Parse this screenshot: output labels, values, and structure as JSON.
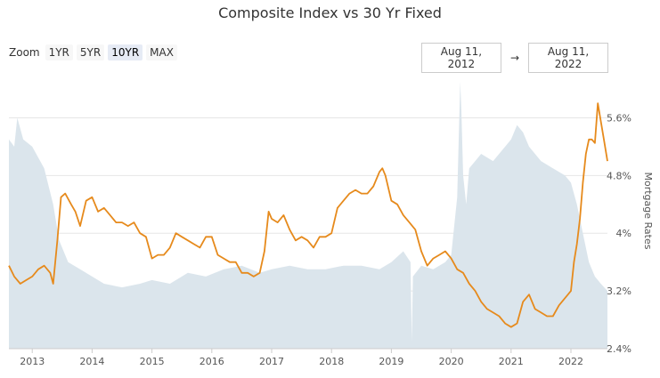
{
  "header": {
    "title": "Composite Index vs 30 Yr Fixed"
  },
  "zoom": {
    "label": "Zoom",
    "buttons": [
      {
        "label": "1YR",
        "active": false
      },
      {
        "label": "5YR",
        "active": false
      },
      {
        "label": "10YR",
        "active": true
      },
      {
        "label": "MAX",
        "active": false
      }
    ]
  },
  "range": {
    "from": "Aug 11, 2012",
    "separator": "→",
    "to": "Aug 11, 2022"
  },
  "colors": {
    "mortgage_line": "#e68a1c",
    "composite_area": "#dbe5ec",
    "grid": "#e6e6e6"
  },
  "chart_data": {
    "type": "area",
    "title": "Composite Index vs 30 Yr Fixed",
    "ylabel": "Mortgage Rates",
    "ylim": [
      2.4,
      6.0
    ],
    "y_ticks": [
      "2.4%",
      "3.2%",
      "4%",
      "4.8%",
      "5.6%"
    ],
    "y_tick_values": [
      2.4,
      3.2,
      4.0,
      4.8,
      5.6
    ],
    "xlim": [
      2012.61,
      2022.61
    ],
    "x_ticks": [
      "2013",
      "2014",
      "2015",
      "2016",
      "2017",
      "2018",
      "2019",
      "2020",
      "2021",
      "2022"
    ],
    "x_tick_values": [
      2013,
      2014,
      2015,
      2016,
      2017,
      2018,
      2019,
      2020,
      2021,
      2022
    ],
    "grid": true,
    "series": [
      {
        "name": "Mortgage Rates",
        "kind": "line",
        "x": [
          2012.61,
          2012.7,
          2012.8,
          2012.9,
          2013.0,
          2013.1,
          2013.2,
          2013.3,
          2013.35,
          2013.42,
          2013.48,
          2013.55,
          2013.65,
          2013.72,
          2013.8,
          2013.9,
          2014.0,
          2014.1,
          2014.2,
          2014.3,
          2014.4,
          2014.5,
          2014.6,
          2014.7,
          2014.8,
          2014.9,
          2015.0,
          2015.1,
          2015.2,
          2015.3,
          2015.4,
          2015.5,
          2015.6,
          2015.7,
          2015.8,
          2015.9,
          2016.0,
          2016.1,
          2016.2,
          2016.3,
          2016.4,
          2016.5,
          2016.6,
          2016.7,
          2016.8,
          2016.88,
          2016.95,
          2017.0,
          2017.1,
          2017.2,
          2017.3,
          2017.4,
          2017.5,
          2017.6,
          2017.7,
          2017.8,
          2017.9,
          2018.0,
          2018.1,
          2018.2,
          2018.3,
          2018.4,
          2018.5,
          2018.6,
          2018.7,
          2018.8,
          2018.85,
          2018.9,
          2019.0,
          2019.1,
          2019.2,
          2019.3,
          2019.4,
          2019.5,
          2019.6,
          2019.7,
          2019.8,
          2019.9,
          2020.0,
          2020.1,
          2020.2,
          2020.3,
          2020.4,
          2020.5,
          2020.6,
          2020.7,
          2020.8,
          2020.9,
          2021.0,
          2021.1,
          2021.2,
          2021.3,
          2021.4,
          2021.5,
          2021.6,
          2021.7,
          2021.8,
          2021.9,
          2022.0,
          2022.05,
          2022.1,
          2022.15,
          2022.2,
          2022.25,
          2022.3,
          2022.35,
          2022.4,
          2022.45,
          2022.5,
          2022.55,
          2022.61
        ],
        "values": [
          3.55,
          3.4,
          3.3,
          3.35,
          3.4,
          3.5,
          3.55,
          3.45,
          3.3,
          3.9,
          4.5,
          4.55,
          4.4,
          4.3,
          4.1,
          4.45,
          4.5,
          4.3,
          4.35,
          4.25,
          4.15,
          4.15,
          4.1,
          4.15,
          4.0,
          3.95,
          3.65,
          3.7,
          3.7,
          3.8,
          4.0,
          3.95,
          3.9,
          3.85,
          3.8,
          3.95,
          3.95,
          3.7,
          3.65,
          3.6,
          3.6,
          3.45,
          3.45,
          3.4,
          3.45,
          3.75,
          4.3,
          4.2,
          4.15,
          4.25,
          4.05,
          3.9,
          3.95,
          3.9,
          3.8,
          3.95,
          3.95,
          4.0,
          4.35,
          4.45,
          4.55,
          4.6,
          4.55,
          4.55,
          4.65,
          4.85,
          4.9,
          4.8,
          4.45,
          4.4,
          4.25,
          4.15,
          4.05,
          3.75,
          3.55,
          3.65,
          3.7,
          3.75,
          3.65,
          3.5,
          3.45,
          3.3,
          3.2,
          3.05,
          2.95,
          2.9,
          2.85,
          2.75,
          2.7,
          2.75,
          3.05,
          3.15,
          2.95,
          2.9,
          2.85,
          2.85,
          3.0,
          3.1,
          3.2,
          3.6,
          3.85,
          4.2,
          4.7,
          5.1,
          5.3,
          5.3,
          5.25,
          5.8,
          5.55,
          5.3,
          5.0
        ]
      },
      {
        "name": "Composite Index",
        "kind": "area",
        "x": [
          2012.61,
          2012.7,
          2012.75,
          2012.85,
          2013.0,
          2013.2,
          2013.35,
          2013.45,
          2013.6,
          2013.8,
          2014.0,
          2014.2,
          2014.5,
          2014.8,
          2015.0,
          2015.3,
          2015.6,
          2015.9,
          2016.2,
          2016.5,
          2016.8,
          2017.0,
          2017.3,
          2017.6,
          2017.9,
          2018.2,
          2018.5,
          2018.8,
          2019.0,
          2019.2,
          2019.32,
          2019.34,
          2019.36,
          2019.5,
          2019.7,
          2019.9,
          2020.0,
          2020.1,
          2020.15,
          2020.17,
          2020.2,
          2020.25,
          2020.3,
          2020.4,
          2020.5,
          2020.7,
          2020.9,
          2021.0,
          2021.1,
          2021.2,
          2021.3,
          2021.5,
          2021.7,
          2021.9,
          2022.0,
          2022.1,
          2022.2,
          2022.3,
          2022.4,
          2022.5,
          2022.61
        ],
        "values": [
          5.3,
          5.2,
          5.6,
          5.3,
          5.2,
          4.9,
          4.4,
          3.9,
          3.6,
          3.5,
          3.4,
          3.3,
          3.25,
          3.3,
          3.35,
          3.3,
          3.45,
          3.4,
          3.5,
          3.55,
          3.45,
          3.5,
          3.55,
          3.5,
          3.5,
          3.55,
          3.55,
          3.5,
          3.6,
          3.75,
          3.6,
          2.5,
          3.4,
          3.55,
          3.5,
          3.6,
          3.7,
          4.5,
          6.1,
          5.7,
          4.8,
          4.4,
          4.9,
          5.0,
          5.1,
          5.0,
          5.2,
          5.3,
          5.5,
          5.4,
          5.2,
          5.0,
          4.9,
          4.8,
          4.7,
          4.4,
          4.0,
          3.6,
          3.4,
          3.3,
          3.2
        ]
      }
    ]
  }
}
